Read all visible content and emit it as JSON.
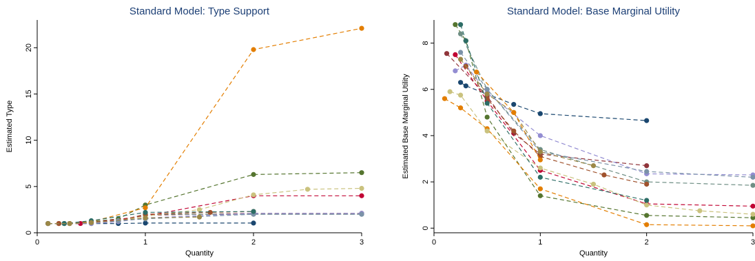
{
  "chart_data": [
    {
      "type": "line",
      "title": "Standard Model: Type Support",
      "xlabel": "Quantity",
      "ylabel": "Estimated Type",
      "xlim": [
        0,
        3
      ],
      "ylim": [
        0,
        23
      ],
      "xticks": [
        0,
        1,
        2,
        3
      ],
      "yticks": [
        0,
        5,
        10,
        15,
        20
      ],
      "grid": false,
      "legend": "none",
      "series": [
        {
          "color": "#1a476f",
          "x": [
            0.1,
            0.25,
            0.5,
            0.75,
            1,
            2
          ],
          "y": [
            1,
            1,
            1,
            1,
            1.05,
            1.05
          ]
        },
        {
          "color": "#90353b",
          "x": [
            0.1,
            0.2,
            0.3,
            0.5,
            0.75,
            1,
            2,
            3
          ],
          "y": [
            1,
            1,
            1,
            1.1,
            1.3,
            1.9,
            2.1,
            2.1
          ]
        },
        {
          "color": "#55752f",
          "x": [
            0.1,
            0.25,
            0.5,
            0.75,
            1,
            2,
            3
          ],
          "y": [
            1,
            1,
            1.2,
            1.5,
            3,
            6.3,
            6.5
          ]
        },
        {
          "color": "#e37e00",
          "x": [
            0.1,
            0.2,
            0.3,
            0.5,
            1,
            2,
            3
          ],
          "y": [
            1,
            1,
            1,
            1.2,
            2.7,
            19.8,
            22.1
          ]
        },
        {
          "color": "#6e8e84",
          "x": [
            0.1,
            0.25,
            0.5,
            0.75,
            1,
            2,
            3
          ],
          "y": [
            1,
            1,
            1,
            1.2,
            2,
            2,
            2
          ]
        },
        {
          "color": "#c10534",
          "x": [
            0.1,
            0.2,
            0.4,
            0.5,
            1,
            2,
            3
          ],
          "y": [
            1,
            1,
            1,
            1.1,
            1.8,
            4,
            4
          ]
        },
        {
          "color": "#938dd2",
          "x": [
            0.1,
            0.2,
            0.3,
            0.5,
            0.75,
            1,
            2,
            3
          ],
          "y": [
            1,
            1,
            1,
            1,
            1.2,
            1.6,
            2.1,
            2.1
          ]
        },
        {
          "color": "#cac27e",
          "x": [
            0.1,
            0.2,
            0.3,
            0.5,
            0.75,
            1,
            1.5,
            2,
            2.5,
            3
          ],
          "y": [
            1,
            1,
            1,
            1.1,
            1.3,
            1.8,
            2.5,
            4.1,
            4.7,
            4.8
          ]
        },
        {
          "color": "#a0522d",
          "x": [
            0.1,
            0.2,
            0.3,
            0.5,
            0.75,
            1,
            1.6,
            2
          ],
          "y": [
            1,
            1,
            1,
            1.1,
            1.3,
            2,
            2.2,
            2.3
          ]
        },
        {
          "color": "#7b92a8",
          "x": [
            0.1,
            0.25,
            0.5,
            0.75,
            1,
            2,
            3
          ],
          "y": [
            1,
            1,
            1.1,
            1.3,
            1.5,
            2,
            2
          ]
        },
        {
          "color": "#2d6d66",
          "x": [
            0.1,
            0.25,
            0.5,
            1,
            2
          ],
          "y": [
            1,
            1,
            1.3,
            2.2,
            2.3
          ]
        },
        {
          "color": "#9c8847",
          "x": [
            0.1,
            0.3,
            0.5,
            1,
            1.5
          ],
          "y": [
            1,
            1,
            1.1,
            1.6,
            1.7
          ]
        }
      ]
    },
    {
      "type": "line",
      "title": "Standard Model: Base Marginal Utility",
      "xlabel": "Quantity",
      "ylabel": "Estimated Base Marginal Utility",
      "xlim": [
        0,
        3
      ],
      "ylim": [
        -0.2,
        9
      ],
      "xticks": [
        0,
        1,
        2,
        3
      ],
      "yticks": [
        0,
        2,
        4,
        6,
        8
      ],
      "grid": false,
      "legend": "none",
      "series": [
        {
          "color": "#1a476f",
          "x": [
            0.25,
            0.3,
            0.75,
            1,
            2
          ],
          "y": [
            6.3,
            6.15,
            5.35,
            4.95,
            4.65
          ]
        },
        {
          "color": "#90353b",
          "x": [
            0.12,
            0.5,
            0.75,
            1,
            2
          ],
          "y": [
            7.55,
            5.7,
            4.1,
            3.2,
            2.7
          ]
        },
        {
          "color": "#55752f",
          "x": [
            0.2,
            0.3,
            0.5,
            1,
            2,
            3
          ],
          "y": [
            8.8,
            8.1,
            4.8,
            1.4,
            0.55,
            0.45
          ]
        },
        {
          "color": "#e37e00",
          "x": [
            0.1,
            0.25,
            0.5,
            1,
            2,
            3
          ],
          "y": [
            5.6,
            5.2,
            4.3,
            1.7,
            0.15,
            0.1
          ]
        },
        {
          "color": "#6e8e84",
          "x": [
            0.25,
            0.5,
            1,
            2,
            3
          ],
          "y": [
            8.4,
            6,
            3.4,
            2,
            1.85
          ]
        },
        {
          "color": "#c10534",
          "x": [
            0.2,
            0.5,
            1,
            2,
            3
          ],
          "y": [
            7.5,
            5.5,
            2.5,
            1.05,
            0.95
          ]
        },
        {
          "color": "#938dd2",
          "x": [
            0.2,
            0.3,
            0.5,
            1,
            2,
            3
          ],
          "y": [
            6.8,
            7.05,
            5.85,
            4,
            2.35,
            2.3
          ]
        },
        {
          "color": "#cac27e",
          "x": [
            0.15,
            0.25,
            0.5,
            1,
            1.5,
            2,
            2.5,
            3
          ],
          "y": [
            5.9,
            5.75,
            4.2,
            2.6,
            1.9,
            1,
            0.75,
            0.6
          ]
        },
        {
          "color": "#a0522d",
          "x": [
            0.3,
            0.5,
            0.75,
            1,
            1.6,
            2
          ],
          "y": [
            7,
            5.6,
            4.2,
            3.1,
            2.3,
            1.9
          ]
        },
        {
          "color": "#7b92a8",
          "x": [
            0.25,
            0.5,
            1,
            2,
            3
          ],
          "y": [
            7.6,
            6,
            3.3,
            2.45,
            2.2
          ]
        },
        {
          "color": "#2d6d66",
          "x": [
            0.25,
            0.3,
            0.5,
            1,
            2
          ],
          "y": [
            8.8,
            8.1,
            5.4,
            2.2,
            1.2
          ]
        },
        {
          "color": "#9c8847",
          "x": [
            0.25,
            0.5,
            0.75,
            1,
            1.5
          ],
          "y": [
            7.3,
            5.8,
            5,
            3.3,
            2.7
          ]
        },
        {
          "color": "#e37e00",
          "x": [
            0.4,
            0.75,
            1
          ],
          "y": [
            6.75,
            5,
            2.95
          ]
        }
      ]
    }
  ]
}
